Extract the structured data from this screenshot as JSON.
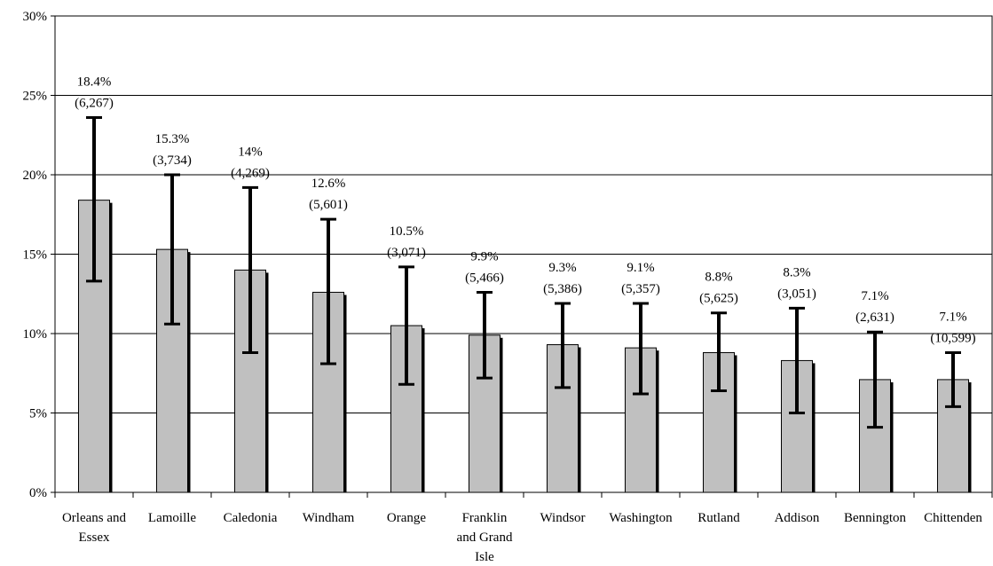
{
  "chart_data": {
    "type": "bar",
    "categories": [
      [
        "Orleans and",
        "Essex"
      ],
      [
        "Lamoille"
      ],
      [
        "Caledonia"
      ],
      [
        "Windham"
      ],
      [
        "Orange"
      ],
      [
        "Franklin",
        "and Grand",
        "Isle"
      ],
      [
        "Windsor"
      ],
      [
        "Washington"
      ],
      [
        "Rutland"
      ],
      [
        "Addison"
      ],
      [
        "Bennington"
      ],
      [
        "Chittenden"
      ]
    ],
    "values": [
      18.4,
      15.3,
      14.0,
      12.6,
      10.5,
      9.9,
      9.3,
      9.1,
      8.8,
      8.3,
      7.1,
      7.1
    ],
    "error_low": [
      13.3,
      10.6,
      8.8,
      8.1,
      6.8,
      7.2,
      6.6,
      6.2,
      6.4,
      5.0,
      4.1,
      5.4
    ],
    "error_high": [
      23.6,
      20.0,
      19.2,
      17.2,
      14.2,
      12.6,
      11.9,
      11.9,
      11.3,
      11.6,
      10.1,
      8.8
    ],
    "value_labels": [
      "18.4%",
      "15.3%",
      "14%",
      "12.6%",
      "10.5%",
      "9.9%",
      "9.3%",
      "9.1%",
      "8.8%",
      "8.3%",
      "7.1%",
      "7.1%"
    ],
    "count_labels": [
      "(6,267)",
      "(3,734)",
      "(4,269)",
      "(5,601)",
      "(3,071)",
      "(5,466)",
      "(5,386)",
      "(5,357)",
      "(5,625)",
      "(3,051)",
      "(2,631)",
      "(10,599)"
    ],
    "y_ticks": [
      "0%",
      "5%",
      "10%",
      "15%",
      "20%",
      "25%",
      "30%"
    ],
    "ylim": [
      0,
      30
    ],
    "y_step": 5,
    "grid": true,
    "title": "",
    "xlabel": "",
    "ylabel": "",
    "colors": {
      "bar": "#c0c0c0",
      "bar_shadow": "#000000",
      "error_bar": "#000000",
      "grid": "#000000",
      "background": "#ffffff"
    }
  }
}
